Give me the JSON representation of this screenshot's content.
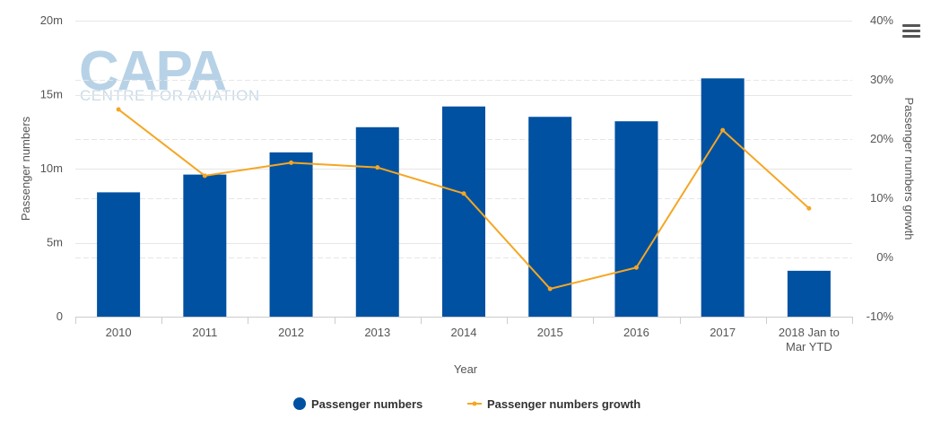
{
  "watermark": {
    "name": "CAPA",
    "subtitle": "CENTRE FOR AVIATION"
  },
  "menu": {
    "icon": "hamburger-menu-icon"
  },
  "chart_data": {
    "type": "bar",
    "title": "",
    "xlabel": "Year",
    "ylabel": "Passenger numbers",
    "y2label": "Passenger numbers growth",
    "categories": [
      "2010",
      "2011",
      "2012",
      "2013",
      "2014",
      "2015",
      "2016",
      "2017",
      "2018 Jan to Mar YTD"
    ],
    "category_lines": [
      [
        "2010"
      ],
      [
        "2011"
      ],
      [
        "2012"
      ],
      [
        "2013"
      ],
      [
        "2014"
      ],
      [
        "2015"
      ],
      [
        "2016"
      ],
      [
        "2017"
      ],
      [
        "2018 Jan to",
        "Mar YTD"
      ]
    ],
    "ylim": [
      0,
      20000000
    ],
    "yticks": [
      0,
      5000000,
      10000000,
      15000000,
      20000000
    ],
    "ytick_labels": [
      "0",
      "5m",
      "10m",
      "15m",
      "20m"
    ],
    "y2lim": [
      -10,
      40
    ],
    "y2ticks": [
      -10,
      0,
      10,
      20,
      30,
      40
    ],
    "y2tick_labels": [
      "-10%",
      "0%",
      "10%",
      "20%",
      "30%",
      "40%"
    ],
    "grid": true,
    "legend_position": "bottom-center",
    "series": [
      {
        "name": "Passenger numbers",
        "type": "bar",
        "axis": "left",
        "color": "#0051a2",
        "values": [
          8400000,
          9600000,
          11100000,
          12800000,
          14200000,
          13500000,
          13200000,
          16100000,
          3100000
        ]
      },
      {
        "name": "Passenger numbers growth",
        "type": "line",
        "axis": "right",
        "color": "#f5a623",
        "values": [
          25.0,
          13.8,
          16.0,
          15.2,
          10.8,
          -5.3,
          -1.7,
          21.5,
          8.3
        ]
      }
    ]
  }
}
